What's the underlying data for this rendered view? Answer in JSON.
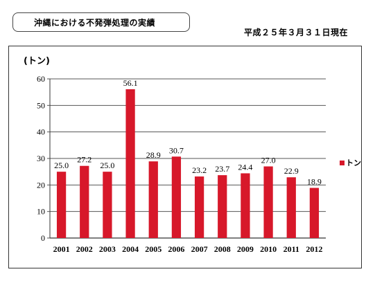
{
  "header": {
    "title": "沖縄における不発弾処理の実績",
    "date_note": "平成２５年３月３１日現在"
  },
  "chart_data": {
    "type": "bar",
    "title": "",
    "xlabel": "",
    "ylabel": "(トン)",
    "ylim": [
      0,
      60
    ],
    "yticks": [
      0,
      10,
      20,
      30,
      40,
      50,
      60
    ],
    "grid": true,
    "legend_position": "right",
    "categories": [
      "2001",
      "2002",
      "2003",
      "2004",
      "2005",
      "2006",
      "2007",
      "2008",
      "2009",
      "2010",
      "2011",
      "2012"
    ],
    "series": [
      {
        "name": "トン",
        "color": "#d7182a",
        "values": [
          25.0,
          27.2,
          25.0,
          56.1,
          28.9,
          30.7,
          23.2,
          23.7,
          24.4,
          27.0,
          22.9,
          18.9
        ],
        "labels": [
          "25.0",
          "27.2",
          "25.0",
          "56.1",
          "28.9",
          "30.7",
          "23.2",
          "23.7",
          "24.4",
          "27.0",
          "22.9",
          "18.9"
        ]
      }
    ]
  }
}
